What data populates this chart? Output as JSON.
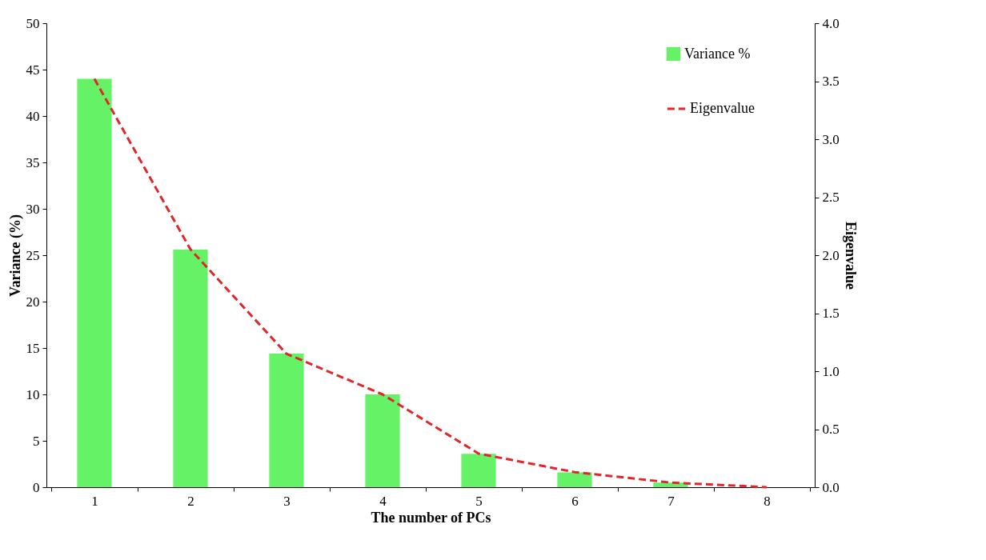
{
  "chart_data": {
    "type": "bar",
    "xlabel": "The number of PCs",
    "ylabel": "Variance (%)",
    "y2label": "Eigenvalue",
    "categories": [
      "1",
      "2",
      "3",
      "4",
      "5",
      "6",
      "7",
      "8"
    ],
    "series": [
      {
        "name": "Variance %",
        "color": "#66f266",
        "values": [
          44.0,
          25.6,
          14.4,
          10.0,
          3.6,
          1.6,
          0.5,
          0.0
        ]
      },
      {
        "name": "Eigenvalue",
        "type": "line",
        "axis": "y2",
        "color": "#e0262b",
        "line_style": "dashed",
        "marker": "none",
        "values": [
          3.52,
          2.05,
          1.15,
          0.8,
          0.29,
          0.13,
          0.04,
          0.0
        ]
      }
    ],
    "ylim": [
      0,
      50
    ],
    "yticks": [
      0,
      5,
      10,
      15,
      20,
      25,
      30,
      35,
      40,
      45,
      50
    ],
    "y2lim": [
      0,
      4
    ],
    "y2ticks": [
      {
        "value": 0,
        "label": "0.0"
      },
      {
        "value": 0.5,
        "label": "0.5"
      },
      {
        "value": 1,
        "label": "1.0"
      },
      {
        "value": 1.5,
        "label": "1.5"
      },
      {
        "value": 2,
        "label": "2.0"
      },
      {
        "value": 2.5,
        "label": "2.5"
      },
      {
        "value": 3,
        "label": "3.0"
      },
      {
        "value": 3.5,
        "label": "3.5"
      },
      {
        "value": 4,
        "label": "4.0"
      }
    ],
    "grid": false,
    "legend": "top right"
  }
}
